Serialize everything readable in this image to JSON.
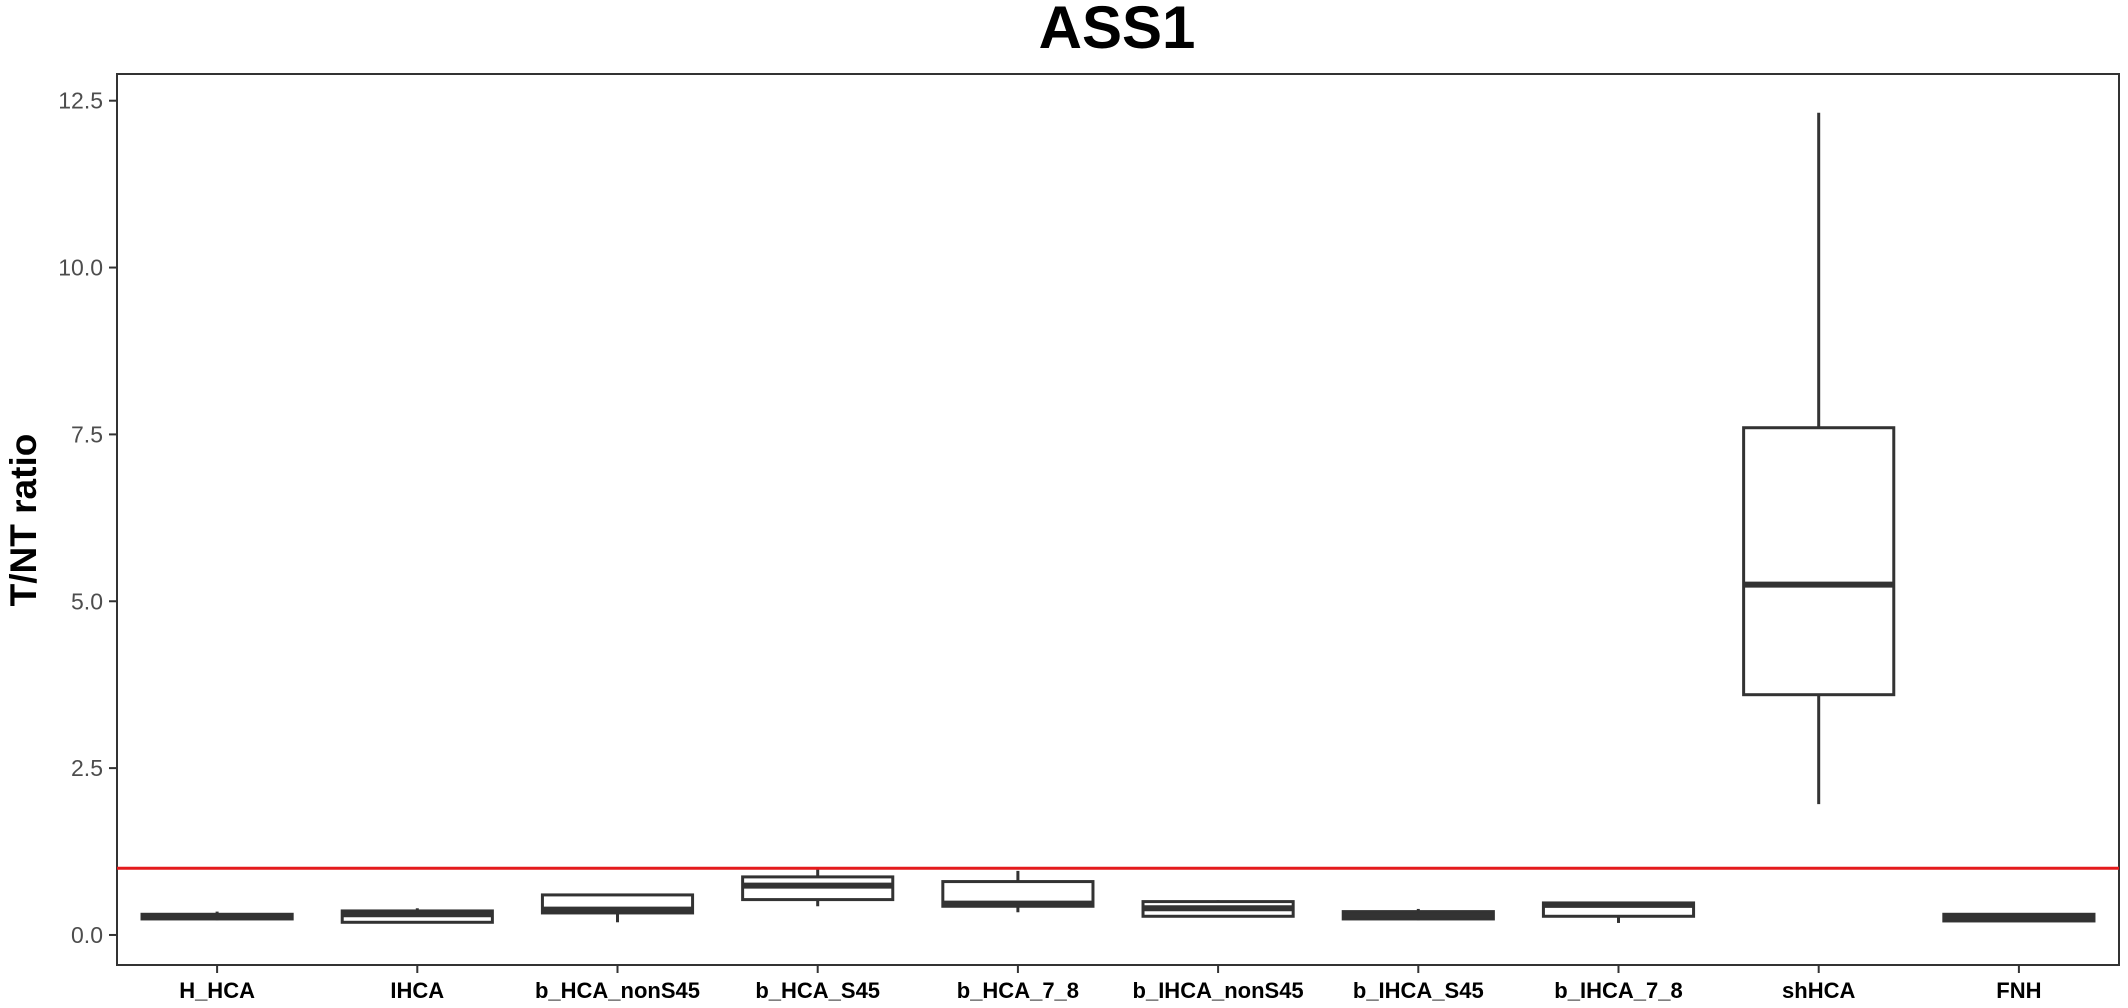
{
  "chart_data": {
    "type": "box",
    "title": "ASS1",
    "xlabel": "",
    "ylabel": "T/NT ratio",
    "ylim": [
      -0.45,
      12.9
    ],
    "yticks": [
      0.0,
      2.5,
      5.0,
      7.5,
      10.0,
      12.5
    ],
    "ytick_labels": [
      "0.0",
      "2.5",
      "5.0",
      "7.5",
      "10.0",
      "12.5"
    ],
    "grid": false,
    "legend": "none",
    "reference_line": {
      "y": 1.0,
      "color": "#e41a1c"
    },
    "box_color": "#333333",
    "categories": [
      "H_HCA",
      "IHCA",
      "b_HCA_nonS45",
      "b_HCA_S45",
      "b_HCA_7_8",
      "b_IHCA_nonS45",
      "b_IHCA_S45",
      "b_IHCA_7_8",
      "shHCA",
      "FNH"
    ],
    "boxes": [
      {
        "min": 0.22,
        "q1": 0.24,
        "median": 0.27,
        "q3": 0.31,
        "max": 0.35
      },
      {
        "min": 0.18,
        "q1": 0.19,
        "median": 0.31,
        "q3": 0.36,
        "max": 0.4
      },
      {
        "min": 0.19,
        "q1": 0.33,
        "median": 0.38,
        "q3": 0.6,
        "max": 0.62
      },
      {
        "min": 0.43,
        "q1": 0.53,
        "median": 0.74,
        "q3": 0.87,
        "max": 0.98
      },
      {
        "min": 0.34,
        "q1": 0.43,
        "median": 0.47,
        "q3": 0.8,
        "max": 0.96
      },
      {
        "min": 0.28,
        "q1": 0.28,
        "median": 0.4,
        "q3": 0.5,
        "max": 0.52
      },
      {
        "min": 0.22,
        "q1": 0.24,
        "median": 0.29,
        "q3": 0.35,
        "max": 0.39
      },
      {
        "min": 0.18,
        "q1": 0.28,
        "median": 0.45,
        "q3": 0.48,
        "max": 0.5
      },
      {
        "min": 1.96,
        "q1": 3.6,
        "median": 5.25,
        "q3": 7.6,
        "max": 12.32
      },
      {
        "min": 0.2,
        "q1": 0.21,
        "median": 0.26,
        "q3": 0.31,
        "max": 0.32
      }
    ]
  }
}
